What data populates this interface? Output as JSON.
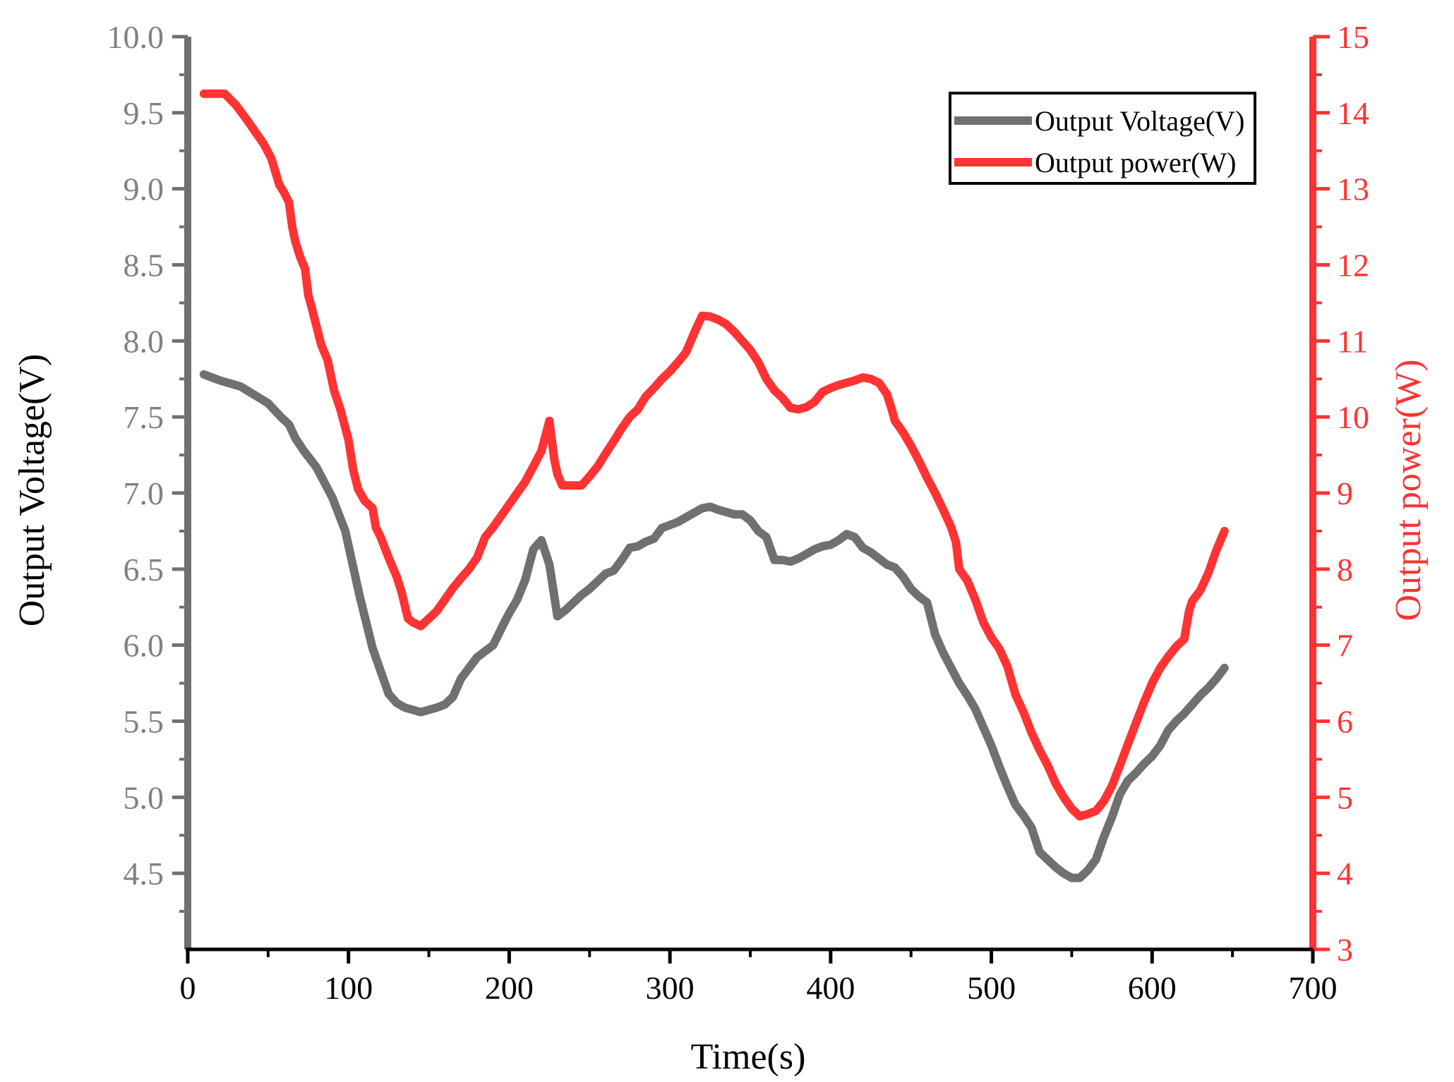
{
  "chart_data": {
    "type": "line",
    "xlabel": "Time(s)",
    "ylabel_left": "Output Voltage(V)",
    "ylabel_right": "Output power(W)",
    "xlim": [
      0,
      700
    ],
    "ylim_left": [
      4.0,
      10.0
    ],
    "ylim_right": [
      3,
      15
    ],
    "x_ticks": [
      0,
      100,
      200,
      300,
      400,
      500,
      600,
      700
    ],
    "x_tick_labels": [
      "0",
      "100",
      "200",
      "300",
      "400",
      "500",
      "600",
      "700"
    ],
    "y_left_ticks": [
      4.5,
      5.0,
      5.5,
      6.0,
      6.5,
      7.0,
      7.5,
      8.0,
      8.5,
      9.0,
      9.5,
      10.0
    ],
    "y_left_tick_labels": [
      "4.5",
      "5.0",
      "5.5",
      "6.0",
      "6.5",
      "7.0",
      "7.5",
      "8.0",
      "8.5",
      "9.0",
      "9.5",
      "10.0"
    ],
    "y_right_ticks": [
      3,
      4,
      5,
      6,
      7,
      8,
      9,
      10,
      11,
      12,
      13,
      14,
      15
    ],
    "y_right_tick_labels": [
      "3",
      "4",
      "5",
      "6",
      "7",
      "8",
      "9",
      "10",
      "11",
      "12",
      "13",
      "14",
      "15"
    ],
    "grid": false,
    "legend_position": "top-right",
    "series": [
      {
        "name": "Output Voltage(V)",
        "axis": "left",
        "color": "#707070",
        "x": [
          10,
          20,
          33,
          50,
          58,
          63,
          67,
          72,
          80,
          90,
          98,
          107,
          115,
          125,
          130,
          135,
          145,
          155,
          160,
          165,
          170,
          175,
          180,
          190,
          197,
          200,
          205,
          210,
          215,
          220,
          225,
          230,
          235,
          240,
          245,
          250,
          255,
          260,
          265,
          270,
          275,
          280,
          285,
          290,
          295,
          300,
          305,
          315,
          320,
          325,
          330,
          340,
          345,
          350,
          355,
          360,
          365,
          370,
          375,
          380,
          385,
          390,
          395,
          400,
          405,
          410,
          415,
          420,
          425,
          430,
          435,
          440,
          445,
          450,
          455,
          460,
          465,
          470,
          475,
          480,
          485,
          490,
          495,
          500,
          505,
          510,
          515,
          520,
          525,
          530,
          535,
          540,
          545,
          550,
          555,
          560,
          565,
          570,
          575,
          580,
          585,
          590,
          595,
          600,
          605,
          610,
          615,
          620,
          625,
          630,
          635,
          640,
          645
        ],
        "y": [
          7.78,
          7.74,
          7.7,
          7.59,
          7.5,
          7.45,
          7.36,
          7.28,
          7.17,
          6.97,
          6.75,
          6.32,
          5.98,
          5.68,
          5.62,
          5.59,
          5.56,
          5.59,
          5.61,
          5.66,
          5.78,
          5.85,
          5.92,
          6.0,
          6.15,
          6.21,
          6.3,
          6.43,
          6.63,
          6.69,
          6.53,
          6.19,
          6.23,
          6.28,
          6.33,
          6.37,
          6.42,
          6.47,
          6.49,
          6.56,
          6.64,
          6.65,
          6.68,
          6.7,
          6.77,
          6.79,
          6.81,
          6.87,
          6.9,
          6.91,
          6.89,
          6.86,
          6.86,
          6.82,
          6.75,
          6.71,
          6.56,
          6.56,
          6.55,
          6.57,
          6.6,
          6.63,
          6.65,
          6.66,
          6.69,
          6.73,
          6.71,
          6.64,
          6.61,
          6.57,
          6.53,
          6.51,
          6.45,
          6.37,
          6.32,
          6.28,
          6.07,
          5.95,
          5.85,
          5.75,
          5.67,
          5.58,
          5.46,
          5.34,
          5.2,
          5.07,
          4.95,
          4.88,
          4.8,
          4.64,
          4.59,
          4.54,
          4.5,
          4.47,
          4.47,
          4.52,
          4.59,
          4.74,
          4.87,
          5.02,
          5.11,
          5.16,
          5.22,
          5.27,
          5.34,
          5.44,
          5.5,
          5.55,
          5.61,
          5.67,
          5.72,
          5.78,
          5.85
        ]
      },
      {
        "name": "Output power(W)",
        "axis": "right",
        "color": "#ff3333",
        "x": [
          10,
          15,
          23,
          30,
          37,
          42,
          47,
          52,
          57,
          60,
          63,
          65,
          67,
          70,
          73,
          75,
          77,
          80,
          83,
          87,
          91,
          95,
          100,
          103,
          106,
          110,
          115,
          117,
          120,
          125,
          130,
          133,
          137,
          140,
          145,
          150,
          155,
          160,
          165,
          170,
          175,
          180,
          185,
          190,
          195,
          200,
          205,
          210,
          215,
          220,
          225,
          228,
          230,
          233,
          236,
          240,
          245,
          250,
          255,
          260,
          265,
          270,
          275,
          280,
          285,
          290,
          295,
          300,
          305,
          310,
          315,
          320,
          325,
          330,
          335,
          340,
          345,
          350,
          355,
          360,
          365,
          370,
          375,
          380,
          385,
          390,
          395,
          400,
          405,
          410,
          415,
          420,
          425,
          430,
          435,
          438,
          440,
          445,
          450,
          455,
          460,
          465,
          470,
          475,
          478,
          480,
          485,
          490,
          495,
          500,
          505,
          510,
          515,
          520,
          525,
          530,
          535,
          540,
          545,
          550,
          555,
          560,
          565,
          570,
          575,
          580,
          585,
          590,
          595,
          600,
          605,
          610,
          615,
          620,
          623,
          625,
          630,
          635,
          640,
          645
        ],
        "y": [
          14.25,
          14.25,
          14.25,
          14.1,
          13.9,
          13.75,
          13.6,
          13.4,
          13.05,
          12.95,
          12.82,
          12.5,
          12.3,
          12.1,
          11.95,
          11.6,
          11.45,
          11.2,
          10.95,
          10.75,
          10.35,
          10.1,
          9.7,
          9.3,
          9.05,
          8.9,
          8.8,
          8.55,
          8.42,
          8.15,
          7.9,
          7.7,
          7.35,
          7.3,
          7.25,
          7.35,
          7.45,
          7.6,
          7.75,
          7.88,
          8.0,
          8.15,
          8.42,
          8.55,
          8.7,
          8.85,
          9.0,
          9.15,
          9.35,
          9.55,
          9.95,
          9.45,
          9.25,
          9.1,
          9.1,
          9.1,
          9.1,
          9.22,
          9.35,
          9.52,
          9.68,
          9.85,
          10.0,
          10.1,
          10.27,
          10.38,
          10.5,
          10.6,
          10.72,
          10.85,
          11.1,
          11.33,
          11.32,
          11.28,
          11.22,
          11.12,
          11.0,
          10.88,
          10.72,
          10.5,
          10.35,
          10.25,
          10.12,
          10.1,
          10.13,
          10.2,
          10.33,
          10.38,
          10.42,
          10.45,
          10.48,
          10.52,
          10.5,
          10.45,
          10.3,
          10.1,
          9.95,
          9.8,
          9.62,
          9.42,
          9.2,
          9.0,
          8.78,
          8.55,
          8.35,
          8.0,
          7.85,
          7.6,
          7.3,
          7.1,
          6.95,
          6.72,
          6.35,
          6.12,
          5.85,
          5.62,
          5.42,
          5.18,
          5.0,
          4.85,
          4.75,
          4.78,
          4.82,
          4.95,
          5.15,
          5.42,
          5.7,
          5.98,
          6.25,
          6.5,
          6.7,
          6.85,
          6.98,
          7.08,
          7.45,
          7.58,
          7.72,
          7.95,
          8.25,
          8.5
        ]
      }
    ]
  }
}
